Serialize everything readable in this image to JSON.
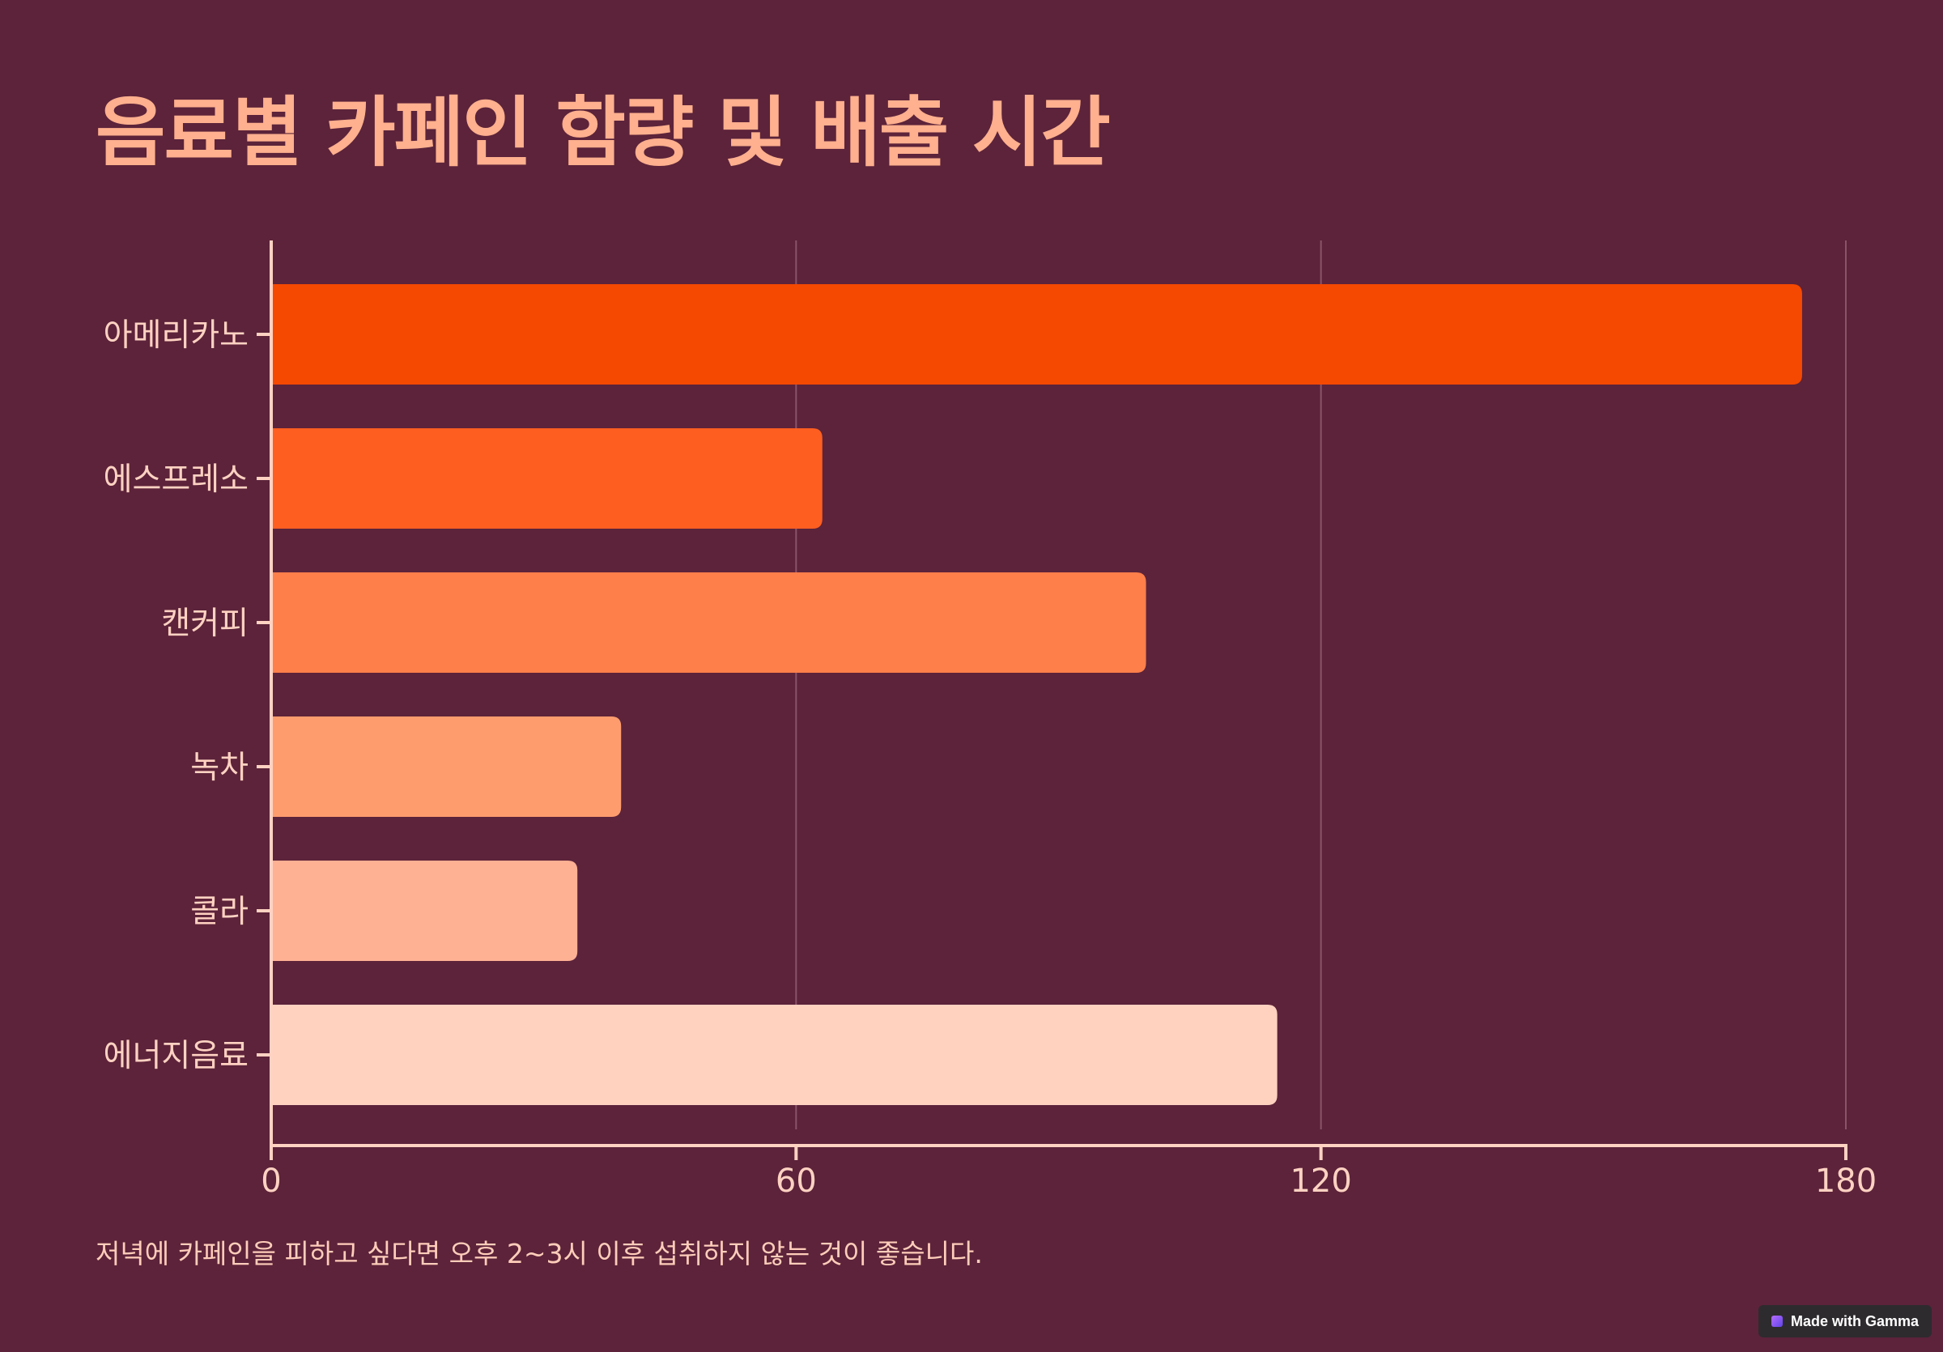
{
  "title": "음료별 카페인 함량 및 배출 시간",
  "footnote": "저녁에 카페인을 피하고 싶다면 오후 2~3시 이후 섭취하지 않는 것이 좋습니다.",
  "badge": {
    "label": "Made with Gamma",
    "icon": "gamma-logo-icon"
  },
  "chart_data": {
    "type": "bar",
    "orientation": "horizontal",
    "categories": [
      "아메리카노",
      "에스프레소",
      "캔커피",
      "녹차",
      "콜라",
      "에너지음료"
    ],
    "values": [
      175,
      63,
      100,
      40,
      35,
      115
    ],
    "xlim": [
      0,
      180
    ],
    "xticks": [
      0,
      60,
      120,
      180
    ],
    "xtick_labels": [
      "0",
      "60",
      "120",
      "180"
    ],
    "grid": "vertical",
    "colors": [
      "#F54800",
      "#FF5E21",
      "#FF7F4A",
      "#FF9C6E",
      "#FFB194",
      "#FFD2C0"
    ],
    "axis_color": "#FFD2C2",
    "grid_color": "#8A5468"
  }
}
